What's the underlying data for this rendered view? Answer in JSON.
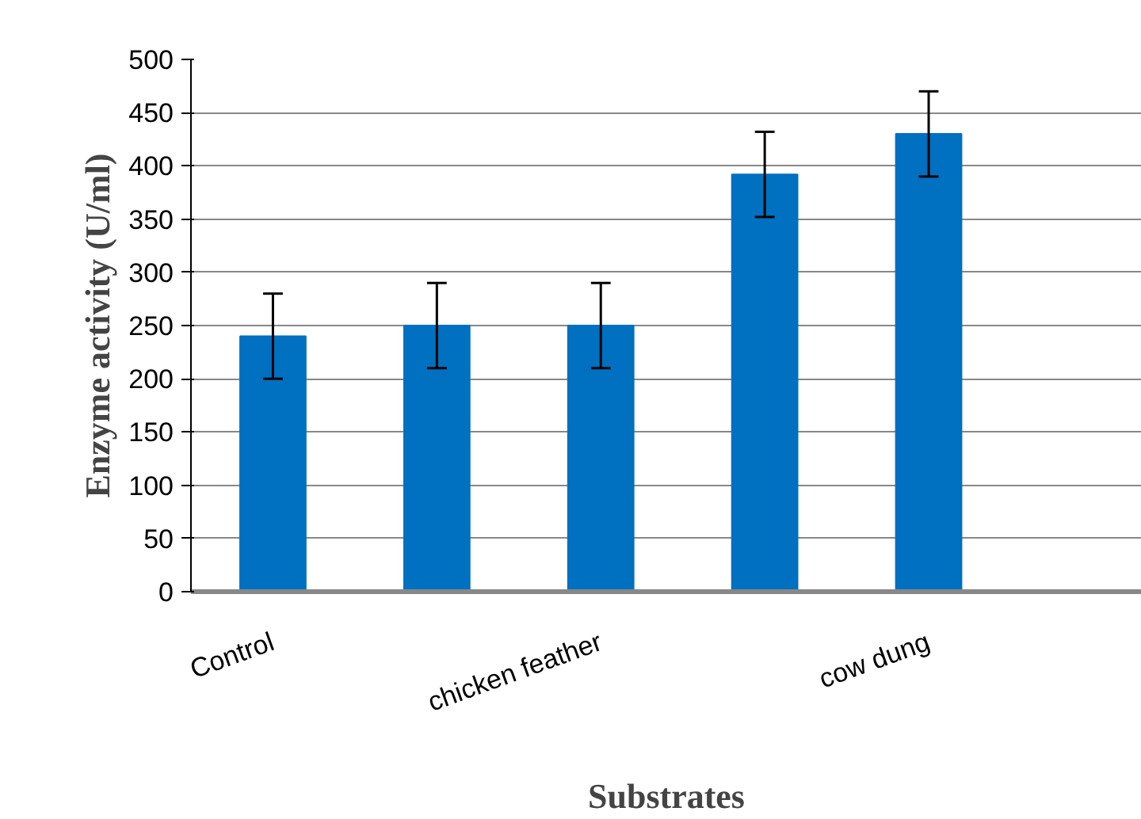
{
  "chart_data": {
    "type": "bar",
    "xlabel": "Substrates",
    "ylabel": "Enzyme activity (U/ml)",
    "categories": [
      "Control",
      null,
      "chicken feather",
      null,
      "cow dung"
    ],
    "values": [
      240,
      250,
      250,
      392,
      430
    ],
    "errors": [
      40,
      40,
      40,
      40,
      40
    ],
    "color": "#0070c0",
    "ylim": [
      0,
      500
    ],
    "yticks": [
      0,
      50,
      100,
      150,
      200,
      250,
      300,
      350,
      400,
      450,
      500
    ],
    "grid": "y"
  }
}
